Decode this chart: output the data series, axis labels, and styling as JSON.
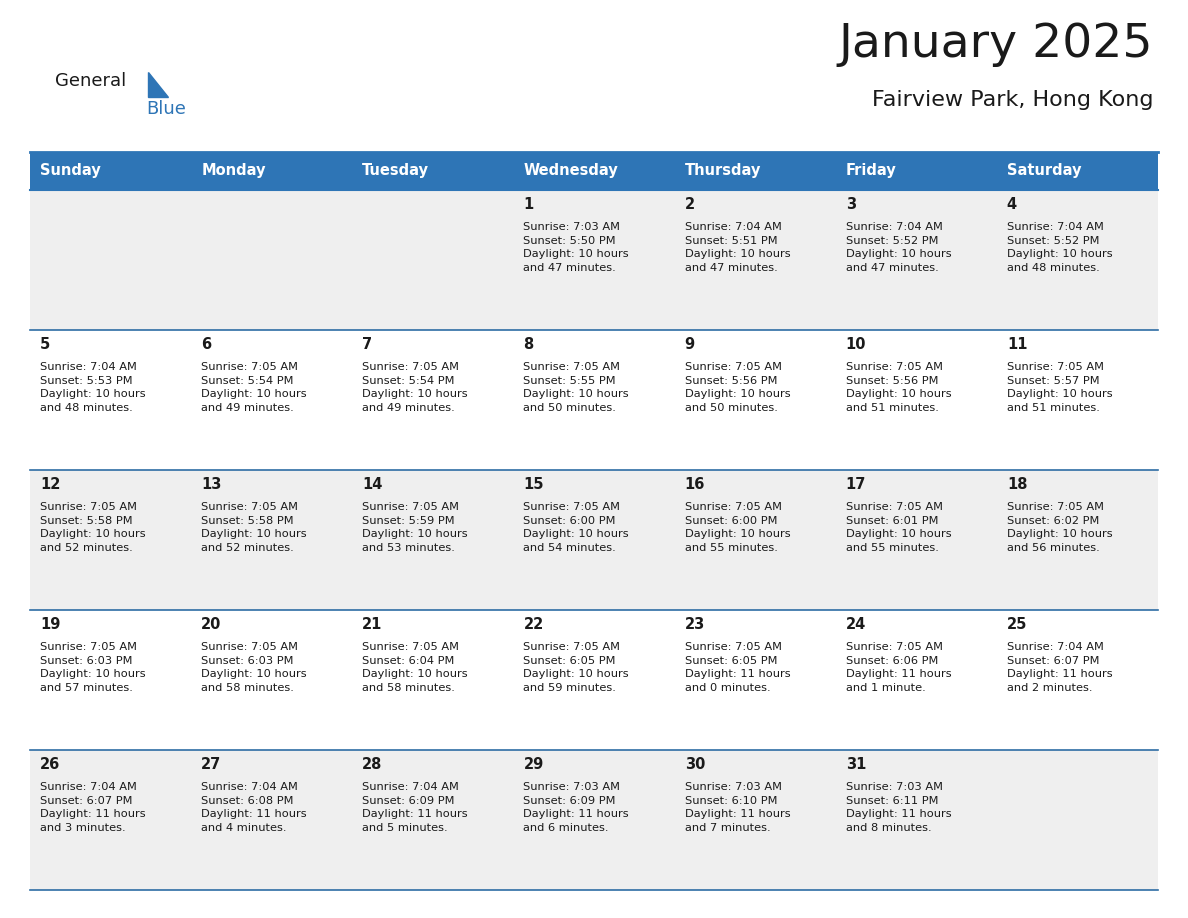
{
  "title": "January 2025",
  "subtitle": "Fairview Park, Hong Kong",
  "header_color": "#2E75B6",
  "header_text_color": "#FFFFFF",
  "row_bg_even": "#EFEFEF",
  "row_bg_odd": "#FFFFFF",
  "text_color": "#1a1a1a",
  "divider_color": "#2E6DA4",
  "day_headers": [
    "Sunday",
    "Monday",
    "Tuesday",
    "Wednesday",
    "Thursday",
    "Friday",
    "Saturday"
  ],
  "weeks": [
    [
      {
        "day": null,
        "sunrise": null,
        "sunset": null,
        "daylight": null
      },
      {
        "day": null,
        "sunrise": null,
        "sunset": null,
        "daylight": null
      },
      {
        "day": null,
        "sunrise": null,
        "sunset": null,
        "daylight": null
      },
      {
        "day": 1,
        "sunrise": "7:03 AM",
        "sunset": "5:50 PM",
        "daylight": "10 hours\nand 47 minutes."
      },
      {
        "day": 2,
        "sunrise": "7:04 AM",
        "sunset": "5:51 PM",
        "daylight": "10 hours\nand 47 minutes."
      },
      {
        "day": 3,
        "sunrise": "7:04 AM",
        "sunset": "5:52 PM",
        "daylight": "10 hours\nand 47 minutes."
      },
      {
        "day": 4,
        "sunrise": "7:04 AM",
        "sunset": "5:52 PM",
        "daylight": "10 hours\nand 48 minutes."
      }
    ],
    [
      {
        "day": 5,
        "sunrise": "7:04 AM",
        "sunset": "5:53 PM",
        "daylight": "10 hours\nand 48 minutes."
      },
      {
        "day": 6,
        "sunrise": "7:05 AM",
        "sunset": "5:54 PM",
        "daylight": "10 hours\nand 49 minutes."
      },
      {
        "day": 7,
        "sunrise": "7:05 AM",
        "sunset": "5:54 PM",
        "daylight": "10 hours\nand 49 minutes."
      },
      {
        "day": 8,
        "sunrise": "7:05 AM",
        "sunset": "5:55 PM",
        "daylight": "10 hours\nand 50 minutes."
      },
      {
        "day": 9,
        "sunrise": "7:05 AM",
        "sunset": "5:56 PM",
        "daylight": "10 hours\nand 50 minutes."
      },
      {
        "day": 10,
        "sunrise": "7:05 AM",
        "sunset": "5:56 PM",
        "daylight": "10 hours\nand 51 minutes."
      },
      {
        "day": 11,
        "sunrise": "7:05 AM",
        "sunset": "5:57 PM",
        "daylight": "10 hours\nand 51 minutes."
      }
    ],
    [
      {
        "day": 12,
        "sunrise": "7:05 AM",
        "sunset": "5:58 PM",
        "daylight": "10 hours\nand 52 minutes."
      },
      {
        "day": 13,
        "sunrise": "7:05 AM",
        "sunset": "5:58 PM",
        "daylight": "10 hours\nand 52 minutes."
      },
      {
        "day": 14,
        "sunrise": "7:05 AM",
        "sunset": "5:59 PM",
        "daylight": "10 hours\nand 53 minutes."
      },
      {
        "day": 15,
        "sunrise": "7:05 AM",
        "sunset": "6:00 PM",
        "daylight": "10 hours\nand 54 minutes."
      },
      {
        "day": 16,
        "sunrise": "7:05 AM",
        "sunset": "6:00 PM",
        "daylight": "10 hours\nand 55 minutes."
      },
      {
        "day": 17,
        "sunrise": "7:05 AM",
        "sunset": "6:01 PM",
        "daylight": "10 hours\nand 55 minutes."
      },
      {
        "day": 18,
        "sunrise": "7:05 AM",
        "sunset": "6:02 PM",
        "daylight": "10 hours\nand 56 minutes."
      }
    ],
    [
      {
        "day": 19,
        "sunrise": "7:05 AM",
        "sunset": "6:03 PM",
        "daylight": "10 hours\nand 57 minutes."
      },
      {
        "day": 20,
        "sunrise": "7:05 AM",
        "sunset": "6:03 PM",
        "daylight": "10 hours\nand 58 minutes."
      },
      {
        "day": 21,
        "sunrise": "7:05 AM",
        "sunset": "6:04 PM",
        "daylight": "10 hours\nand 58 minutes."
      },
      {
        "day": 22,
        "sunrise": "7:05 AM",
        "sunset": "6:05 PM",
        "daylight": "10 hours\nand 59 minutes."
      },
      {
        "day": 23,
        "sunrise": "7:05 AM",
        "sunset": "6:05 PM",
        "daylight": "11 hours\nand 0 minutes."
      },
      {
        "day": 24,
        "sunrise": "7:05 AM",
        "sunset": "6:06 PM",
        "daylight": "11 hours\nand 1 minute."
      },
      {
        "day": 25,
        "sunrise": "7:04 AM",
        "sunset": "6:07 PM",
        "daylight": "11 hours\nand 2 minutes."
      }
    ],
    [
      {
        "day": 26,
        "sunrise": "7:04 AM",
        "sunset": "6:07 PM",
        "daylight": "11 hours\nand 3 minutes."
      },
      {
        "day": 27,
        "sunrise": "7:04 AM",
        "sunset": "6:08 PM",
        "daylight": "11 hours\nand 4 minutes."
      },
      {
        "day": 28,
        "sunrise": "7:04 AM",
        "sunset": "6:09 PM",
        "daylight": "11 hours\nand 5 minutes."
      },
      {
        "day": 29,
        "sunrise": "7:03 AM",
        "sunset": "6:09 PM",
        "daylight": "11 hours\nand 6 minutes."
      },
      {
        "day": 30,
        "sunrise": "7:03 AM",
        "sunset": "6:10 PM",
        "daylight": "11 hours\nand 7 minutes."
      },
      {
        "day": 31,
        "sunrise": "7:03 AM",
        "sunset": "6:11 PM",
        "daylight": "11 hours\nand 8 minutes."
      },
      {
        "day": null,
        "sunrise": null,
        "sunset": null,
        "daylight": null
      }
    ]
  ],
  "logo_general_color": "#1a1a1a",
  "logo_blue_color": "#2E75B6",
  "logo_triangle_color": "#2E75B6",
  "fig_width": 11.88,
  "fig_height": 9.18
}
